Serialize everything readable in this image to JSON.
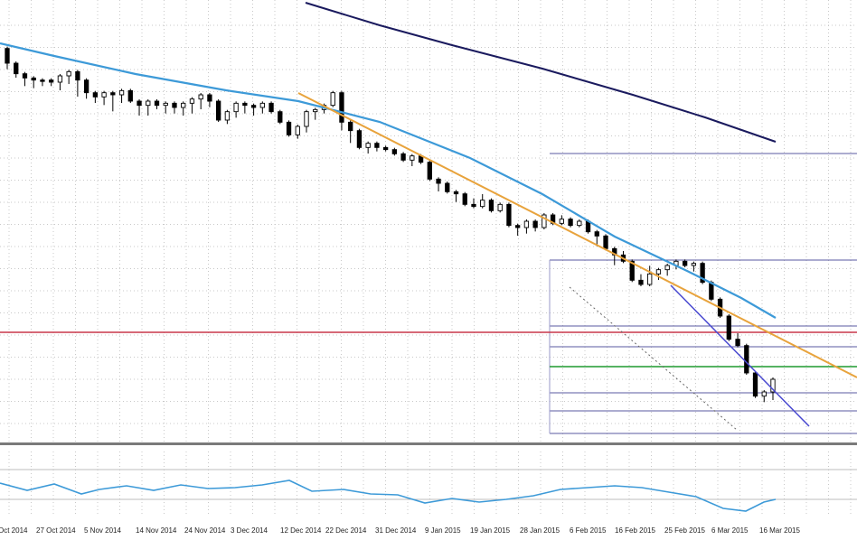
{
  "chart_data": {
    "type": "candlestick",
    "title": "",
    "xlabel": "",
    "ylabel": "",
    "x_tick_labels": [
      "Oct 2014",
      "27 Oct 2014",
      "5 Nov 2014",
      "14 Nov 2014",
      "24 Nov 2014",
      "3 Dec 2014",
      "12 Dec 2014",
      "22 Dec 2014",
      "31 Dec 2014",
      "9 Jan 2015",
      "19 Jan 2015",
      "28 Jan 2015",
      "6 Feb 2015",
      "16 Feb 2015",
      "25 Feb 2015",
      "6 Mar 2015",
      "16 Mar 2015"
    ],
    "y_range_index": [
      0,
      100
    ],
    "grid": "on",
    "candles": [
      [
        97,
        88,
        94,
        90
      ],
      [
        90,
        84,
        87,
        85
      ],
      [
        85,
        80,
        82,
        83
      ],
      [
        83,
        79,
        81,
        82
      ],
      [
        82,
        80,
        81,
        82
      ],
      [
        82,
        80,
        82,
        81
      ],
      [
        81,
        78,
        80,
        84
      ],
      [
        84,
        81,
        82,
        86
      ],
      [
        86,
        75,
        78,
        82
      ],
      [
        82,
        74,
        75,
        76
      ],
      [
        76,
        72,
        73,
        74
      ],
      [
        74,
        71,
        72,
        76
      ],
      [
        76,
        68,
        72,
        75
      ],
      [
        75,
        72,
        74,
        77
      ],
      [
        77,
        73,
        76,
        72
      ],
      [
        72,
        66,
        68,
        70
      ],
      [
        70,
        66,
        68,
        72
      ],
      [
        72,
        69,
        70,
        70
      ],
      [
        70,
        67,
        69,
        71
      ],
      [
        71,
        67,
        68,
        69
      ],
      [
        69,
        66,
        69,
        71
      ],
      [
        71,
        67,
        70,
        73
      ],
      [
        73,
        69,
        71,
        75
      ],
      [
        75,
        70,
        72,
        72
      ],
      [
        72,
        65,
        67,
        63
      ],
      [
        63,
        62,
        63,
        67
      ],
      [
        67,
        65,
        66,
        71
      ],
      [
        71,
        67,
        68,
        70
      ],
      [
        70,
        66,
        68,
        69
      ],
      [
        69,
        67,
        69,
        71
      ],
      [
        71,
        68,
        70,
        67
      ],
      [
        67,
        64,
        65,
        62
      ],
      [
        62,
        57,
        58,
        56
      ],
      [
        56,
        55,
        56,
        60
      ],
      [
        60,
        58,
        59,
        67
      ],
      [
        67,
        64,
        65,
        68
      ],
      [
        68,
        67,
        68,
        70
      ],
      [
        70,
        71,
        72,
        76
      ],
      [
        76,
        59,
        61,
        62
      ],
      [
        62,
        53,
        55,
        58
      ],
      [
        58,
        51,
        52,
        50
      ],
      [
        50,
        48,
        49,
        52
      ],
      [
        52,
        49,
        50,
        50
      ],
      [
        50,
        49,
        50,
        49
      ],
      [
        49,
        48,
        49,
        47
      ],
      [
        47,
        46,
        47,
        44
      ],
      [
        44,
        42,
        43,
        46
      ],
      [
        46,
        44,
        45,
        43
      ],
      [
        43,
        37,
        38,
        35
      ],
      [
        35,
        30,
        31,
        33
      ],
      [
        33,
        31,
        32,
        29
      ],
      [
        29,
        25,
        27,
        28
      ],
      [
        28,
        26,
        27,
        23
      ],
      [
        23,
        24,
        25,
        22
      ],
      [
        22,
        26,
        27,
        25
      ],
      [
        25,
        22,
        23,
        20
      ],
      [
        20,
        20,
        22,
        23
      ],
      [
        23,
        16,
        17,
        13
      ],
      [
        13,
        9,
        11,
        12
      ],
      [
        12,
        10,
        11,
        15
      ],
      [
        15,
        11,
        13,
        12
      ],
      [
        12,
        14,
        15,
        18
      ],
      [
        18,
        15,
        17,
        14
      ],
      [
        14,
        15,
        17,
        16
      ],
      [
        16,
        15,
        16,
        13
      ],
      [
        13,
        14,
        15,
        15
      ],
      [
        15,
        10,
        11,
        10
      ],
      [
        10,
        4,
        5,
        8
      ],
      [
        8,
        6,
        7,
        2
      ],
      [
        2,
        -5,
        -3,
        -1
      ],
      [
        -1,
        -2,
        0,
        -4
      ],
      [
        -4,
        -12,
        -10,
        -13
      ],
      [
        -13,
        -12,
        -11,
        -15
      ],
      [
        -15,
        -9,
        -7,
        -10
      ],
      [
        -10,
        -12,
        -9,
        -8
      ],
      [
        -8,
        -10,
        -8,
        -6
      ],
      [
        -6,
        -7,
        -5,
        -4
      ],
      [
        -4,
        -5,
        -4,
        -6
      ],
      [
        -6,
        -8,
        -7,
        -5
      ],
      [
        -5,
        -10,
        -9,
        -14
      ],
      [
        -14,
        -20,
        -18,
        -22
      ],
      [
        -22,
        -24,
        -22,
        -30
      ],
      [
        -30,
        -39,
        -36,
        -41
      ],
      [
        -41,
        -41,
        -39,
        -44
      ],
      [
        -44,
        -55,
        -53,
        -57
      ],
      [
        -57,
        -64,
        -61,
        -68
      ],
      [
        -68,
        -70,
        -68,
        -66
      ],
      [
        -66,
        -69,
        -67,
        -60
      ]
    ],
    "series": [
      {
        "name": "",
        "type": "moving_average",
        "color": "#3d9ad8"
      },
      {
        "name": "",
        "type": "moving_average",
        "color": "#1a1a5e"
      }
    ],
    "trendlines": [
      {
        "color": "#e8a33c"
      },
      {
        "color": "#4a4ad0"
      }
    ],
    "horizontal_levels": [
      {
        "color": "#c8374a"
      },
      {
        "color": "#1f9a2e"
      }
    ],
    "fibonacci_levels_color": "#5a5aa0",
    "oscillator": {
      "type": "line",
      "color": "#3d9ad8",
      "grid": "on"
    }
  },
  "colors": {
    "background": "#ffffff",
    "grid": "#c8c8c8",
    "candle_bear": "#000000",
    "candle_bull": "#ffffff",
    "separator": "#7a7a7a"
  }
}
